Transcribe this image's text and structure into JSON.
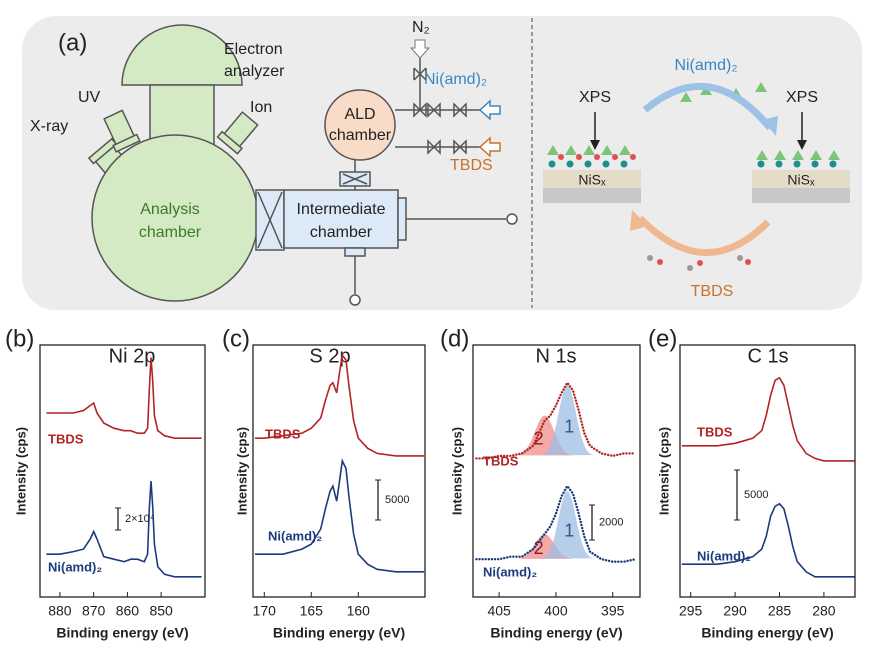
{
  "diagram": {
    "panel": "(a)",
    "electron_analyzer": [
      "Electron",
      "analyzer"
    ],
    "uv": "UV",
    "xray": "X-ray",
    "ion": "Ion",
    "analysis_chamber": [
      "Analysis",
      "chamber"
    ],
    "intermediate_chamber": [
      "Intermediate",
      "chamber"
    ],
    "ald_chamber": [
      "ALD",
      "chamber"
    ],
    "n2": "N₂",
    "precursor": "Ni(amd)₂",
    "coreactant": "TBDS",
    "cycle": {
      "xps_left": "XPS",
      "xps_right": "XPS",
      "substrate_left": "NiSₓ",
      "substrate_right": "NiSₓ",
      "top": "Ni(amd)₂",
      "bottom": "TBDS"
    }
  },
  "chart_data": [
    {
      "type": "line",
      "panel": "(b)",
      "title": "Ni 2p",
      "xlabel": "Binding energy (eV)",
      "ylabel": "Intensity (cps)",
      "scale_bar": "2×10⁴",
      "xlim": [
        885.9,
        837
      ],
      "xticks": [
        880,
        870,
        860,
        850
      ],
      "ylim": [
        0,
        100
      ],
      "x": [
        884,
        880,
        876,
        873,
        871,
        870,
        869,
        867,
        864,
        861,
        859,
        857,
        855,
        854,
        853.5,
        853,
        852.5,
        852,
        851,
        849,
        846,
        843,
        840,
        838
      ],
      "series": [
        {
          "name": "TBDS",
          "color": "#b32424",
          "values": [
            73,
            73,
            73,
            74,
            76,
            77,
            73,
            69,
            67,
            66,
            66,
            65,
            65,
            67,
            82,
            95,
            86,
            72,
            66,
            64,
            63,
            63,
            63,
            63
          ]
        },
        {
          "name": "Ni(amd)₂",
          "color": "#1b3c7c",
          "values": [
            17,
            17,
            18,
            19,
            23,
            26,
            23,
            16,
            15,
            14,
            15,
            15,
            14,
            17,
            35,
            46,
            36,
            21,
            12,
            9,
            8,
            8,
            8,
            8
          ]
        }
      ]
    },
    {
      "type": "line",
      "panel": "(c)",
      "title": "S 2p",
      "xlabel": "Binding energy (eV)",
      "ylabel": "Intensity (cps)",
      "scale_bar": "5000",
      "xlim": [
        171.2,
        152.9
      ],
      "xticks": [
        170,
        165,
        160
      ],
      "ylim": [
        0,
        100
      ],
      "x": [
        171,
        170,
        168,
        166,
        165,
        164,
        163.5,
        163,
        162.7,
        162.3,
        162,
        161.7,
        161.3,
        161,
        160.5,
        160,
        159,
        158,
        156,
        154,
        153
      ],
      "series": [
        {
          "name": "TBDS",
          "color": "#b32424",
          "values": [
            63,
            63,
            64,
            65,
            67,
            71,
            78,
            84,
            85,
            81,
            89,
            96,
            94,
            84,
            70,
            63,
            59,
            57,
            56,
            56,
            56
          ]
        },
        {
          "name": "Ni(amd)₂",
          "color": "#1b3c7c",
          "values": [
            17,
            17,
            17,
            19,
            21,
            27,
            35,
            42,
            44,
            38,
            46,
            54,
            51,
            40,
            25,
            17,
            13,
            11,
            10,
            10,
            10
          ]
        }
      ]
    },
    {
      "type": "dotted",
      "panel": "(d)",
      "title": "N 1s",
      "xlabel": "Binding energy (eV)",
      "ylabel": "Intensity (cps)",
      "scale_bar": "2000",
      "xlim": [
        407.3,
        392.6
      ],
      "xticks": [
        405,
        400,
        395
      ],
      "ylim": [
        0,
        100
      ],
      "x": [
        407,
        406,
        405,
        404,
        403,
        402,
        401.5,
        401,
        400.5,
        400,
        399.5,
        399,
        398.5,
        398,
        397.5,
        397,
        396,
        395,
        394,
        393
      ],
      "series": [
        {
          "name": "TBDS",
          "color": "#b32424",
          "values": [
            55,
            55,
            56,
            56,
            57,
            60,
            65,
            70,
            72,
            76,
            81,
            85,
            82,
            74,
            65,
            60,
            57,
            56,
            57,
            57
          ],
          "peaks": [
            {
              "label": "2",
              "color": "#f08c8c",
              "baseline": 56,
              "center": 401,
              "height": 16,
              "fwhm": 2
            },
            {
              "label": "1",
              "color": "#9dbde3",
              "baseline": 56,
              "center": 399,
              "height": 28,
              "fwhm": 1.8
            }
          ]
        },
        {
          "name": "Ni(amd)₂",
          "color": "#1b3c7c",
          "values": [
            15,
            15,
            15,
            16,
            16,
            19,
            22,
            25,
            28,
            33,
            40,
            44,
            41,
            33,
            24,
            18,
            15,
            14,
            14,
            15
          ],
          "peaks": [
            {
              "label": "2",
              "color": "#f08c8c",
              "baseline": 15,
              "center": 401,
              "height": 10,
              "fwhm": 2
            },
            {
              "label": "1",
              "color": "#9dbde3",
              "baseline": 15,
              "center": 399,
              "height": 27,
              "fwhm": 1.8
            }
          ]
        }
      ]
    },
    {
      "type": "line",
      "panel": "(e)",
      "title": "C 1s",
      "xlabel": "Binding energy (eV)",
      "ylabel": "Intensity (cps)",
      "scale_bar": "5000",
      "xlim": [
        296.2,
        276.5
      ],
      "xticks": [
        295,
        290,
        285,
        280
      ],
      "ylim": [
        0,
        100
      ],
      "x": [
        296,
        294,
        292,
        290,
        289,
        288,
        287,
        286.5,
        286,
        285.5,
        285,
        284.5,
        284,
        283.5,
        283,
        282,
        281,
        280,
        278,
        276.5
      ],
      "series": [
        {
          "name": "TBDS",
          "color": "#b32424",
          "values": [
            60,
            60,
            60,
            61,
            62,
            63,
            66,
            72,
            80,
            86,
            87,
            84,
            76,
            68,
            62,
            57,
            55,
            54,
            54,
            54
          ]
        },
        {
          "name": "Ni(amd)₂",
          "color": "#1b3c7c",
          "values": [
            13,
            13,
            13,
            14,
            15,
            16,
            19,
            24,
            32,
            36,
            37,
            35,
            28,
            20,
            14,
            10,
            8,
            8,
            8,
            8
          ]
        }
      ]
    }
  ]
}
